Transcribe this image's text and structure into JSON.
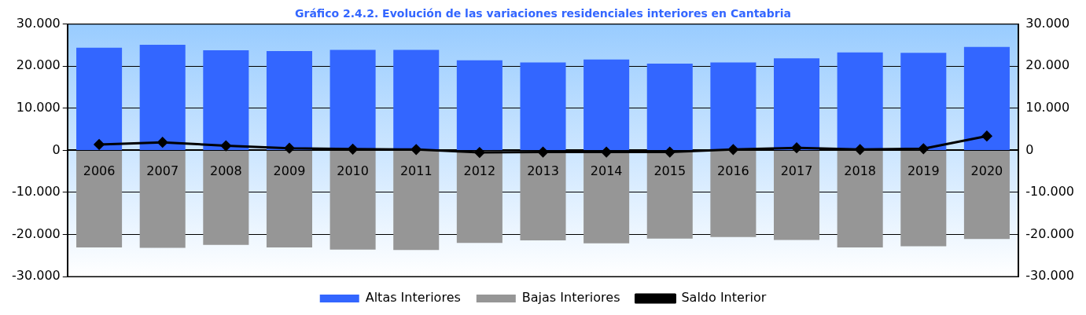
{
  "chart_data": {
    "type": "bar",
    "title": "Gráfico 2.4.2. Evolución de las variaciones residenciales interiores en Cantabria",
    "categories": [
      "2006",
      "2007",
      "2008",
      "2009",
      "2010",
      "2011",
      "2012",
      "2013",
      "2014",
      "2015",
      "2016",
      "2017",
      "2018",
      "2019",
      "2020"
    ],
    "series": [
      {
        "name": "Altas Interiores",
        "color": "#3366ff",
        "values": [
          24400,
          25100,
          23800,
          23600,
          23900,
          23900,
          21400,
          20900,
          21600,
          20600,
          20900,
          21900,
          23300,
          23200,
          24600
        ]
      },
      {
        "name": "Bajas Interiores",
        "color": "#969696",
        "values": [
          -23100,
          -23200,
          -22500,
          -23100,
          -23600,
          -23700,
          -22000,
          -21400,
          -22100,
          -21000,
          -20600,
          -21300,
          -23100,
          -22800,
          -21100
        ]
      },
      {
        "name": "Saldo Interior",
        "type": "line",
        "color": "#000000",
        "marker": "diamond",
        "values": [
          1400,
          1900,
          1100,
          500,
          300,
          200,
          -500,
          -400,
          -400,
          -400,
          200,
          600,
          200,
          400,
          3400
        ]
      }
    ],
    "stacked": true,
    "ylim": [
      -30000,
      30000
    ],
    "yticks": [
      {
        "value": -30000,
        "label": "-30.000"
      },
      {
        "value": -20000,
        "label": "-20.000"
      },
      {
        "value": -10000,
        "label": "-10.000"
      },
      0,
      {
        "value": 10000,
        "label": "10.000"
      },
      {
        "value": 20000,
        "label": "20.000"
      },
      {
        "value": 30000,
        "label": "30.000"
      }
    ],
    "y2lim": [
      -30000,
      30000
    ],
    "y2ticks": [
      {
        "value": -30000,
        "label": "-30.000"
      },
      {
        "value": -20000,
        "label": "-20.000"
      },
      {
        "value": -10000,
        "label": "-10.000"
      },
      0,
      {
        "value": 10000,
        "label": "10.000"
      },
      {
        "value": 20000,
        "label": "20.000"
      },
      {
        "value": 30000,
        "label": "30.000"
      }
    ],
    "grid": "y",
    "legend": "bottom"
  }
}
